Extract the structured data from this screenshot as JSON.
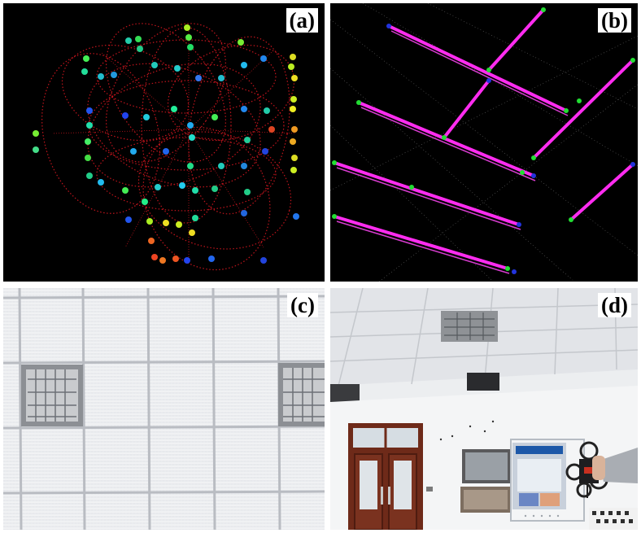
{
  "panels": [
    {
      "id": "a",
      "label": "(a)"
    },
    {
      "id": "b",
      "label": "(b)"
    },
    {
      "id": "c",
      "label": "(c)"
    },
    {
      "id": "d",
      "label": "(d)"
    }
  ],
  "colors": {
    "background_dark": "#000000",
    "lidar_ring": "#c0141c",
    "line_feature": "#ff2cf0",
    "endpoint_green": "#22dd33",
    "endpoint_blue": "#2233dd",
    "ceiling_tile": "#f1f2f3",
    "ceiling_grid": "#b9bcc2",
    "door_wood": "#6e2a19"
  }
}
